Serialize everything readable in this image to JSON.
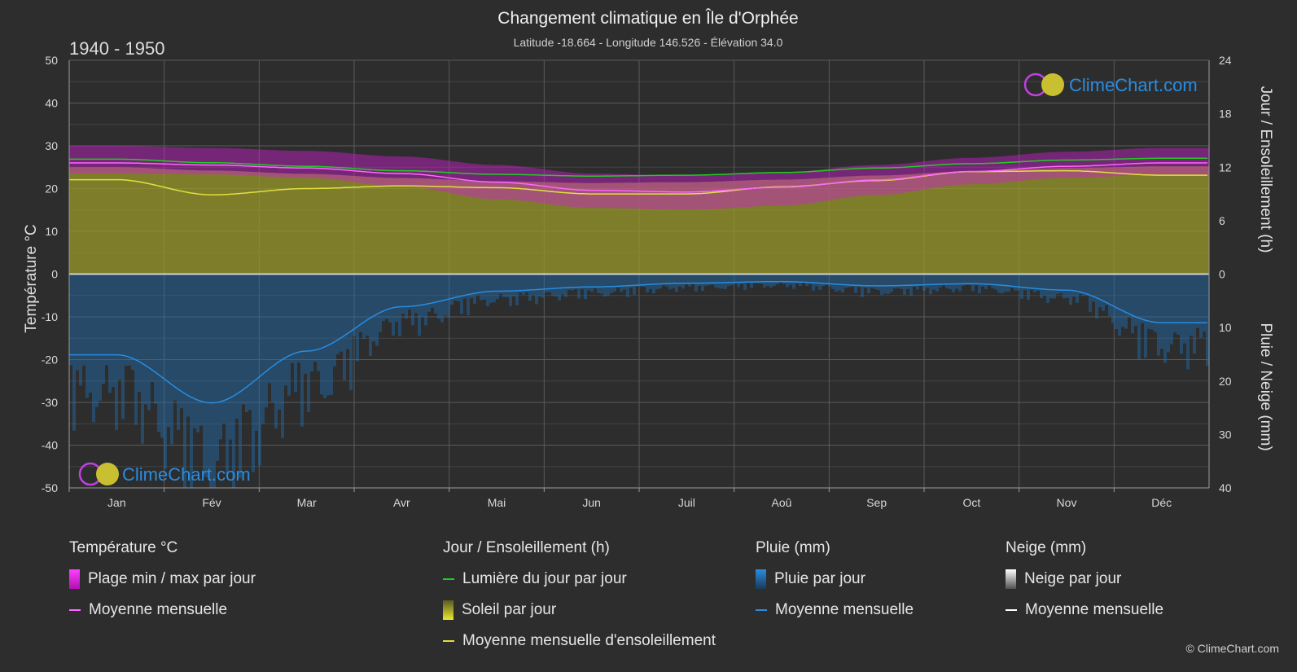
{
  "header": {
    "title": "Changement climatique en Île d'Orphée",
    "subtitle": "Latitude -18.664 - Longitude 146.526 - Élévation 34.0",
    "period": "1940 - 1950"
  },
  "brand": {
    "name": "ClimeChart.com",
    "copyright": "© ClimeChart.com"
  },
  "colors": {
    "background": "#2d2d2d",
    "temp_range": "#d020d0",
    "temp_mean": "#ff66ff",
    "daylight": "#22cc22",
    "sunshine_fill": "#9a9a2a",
    "sunshine_mean": "#e0e040",
    "rain": "#1e6fb0",
    "rain_mean": "#2a8ce0",
    "snow_mean": "#ffffff",
    "brand_blue": "#2a8ce0"
  },
  "chart_data": {
    "type": "area",
    "months": [
      "Jan",
      "Fév",
      "Mar",
      "Avr",
      "Mai",
      "Jun",
      "Juil",
      "Aoû",
      "Sep",
      "Oct",
      "Nov",
      "Déc"
    ],
    "axes": {
      "left": {
        "label": "Température °C",
        "range": [
          -50,
          50
        ],
        "ticks": [
          50,
          40,
          30,
          20,
          10,
          0,
          -10,
          -20,
          -30,
          -40,
          -50
        ]
      },
      "right_top": {
        "label": "Jour / Ensoleillement (h)",
        "range": [
          0,
          24
        ],
        "ticks": [
          24,
          18,
          12,
          6,
          0
        ]
      },
      "right_bottom": {
        "label": "Pluie / Neige (mm)",
        "range": [
          0,
          40
        ],
        "ticks": [
          0,
          10,
          20,
          30,
          40
        ]
      }
    },
    "grid": true,
    "series": {
      "temp_max": [
        30.0,
        29.5,
        28.8,
        27.5,
        25.5,
        23.5,
        23.0,
        23.8,
        25.5,
        27.2,
        28.6,
        29.5
      ],
      "temp_min": [
        23.5,
        23.3,
        22.5,
        20.5,
        17.5,
        15.5,
        15.0,
        16.0,
        18.5,
        21.0,
        22.5,
        23.3
      ],
      "temp_mean": [
        26.0,
        25.5,
        24.8,
        23.5,
        21.5,
        19.6,
        19.2,
        20.3,
        22.0,
        24.0,
        25.2,
        26.0
      ],
      "daylight_hours": [
        12.9,
        12.5,
        12.1,
        11.6,
        11.2,
        11.0,
        11.1,
        11.4,
        11.9,
        12.4,
        12.8,
        13.0
      ],
      "sunshine_mean_hours": [
        10.6,
        8.9,
        9.6,
        9.9,
        9.7,
        9.0,
        9.0,
        9.8,
        10.5,
        11.5,
        11.6,
        11.1
      ],
      "rain_mean_mm": [
        15.1,
        24.1,
        14.4,
        6.1,
        3.2,
        2.4,
        1.7,
        1.4,
        2.2,
        1.8,
        3.0,
        9.1
      ],
      "snow_mean_mm": [
        0,
        0,
        0,
        0,
        0,
        0,
        0,
        0,
        0,
        0,
        0,
        0
      ]
    }
  },
  "legend": {
    "temperature": {
      "title": "Température °C",
      "range_label": "Plage min / max par jour",
      "mean_label": "Moyenne mensuelle"
    },
    "sun": {
      "title": "Jour / Ensoleillement (h)",
      "daylight_label": "Lumière du jour par jour",
      "sunshine_label": "Soleil par jour",
      "sunshine_mean_label": "Moyenne mensuelle d'ensoleillement"
    },
    "rain": {
      "title": "Pluie (mm)",
      "daily_label": "Pluie par jour",
      "mean_label": "Moyenne mensuelle"
    },
    "snow": {
      "title": "Neige (mm)",
      "daily_label": "Neige par jour",
      "mean_label": "Moyenne mensuelle"
    }
  }
}
